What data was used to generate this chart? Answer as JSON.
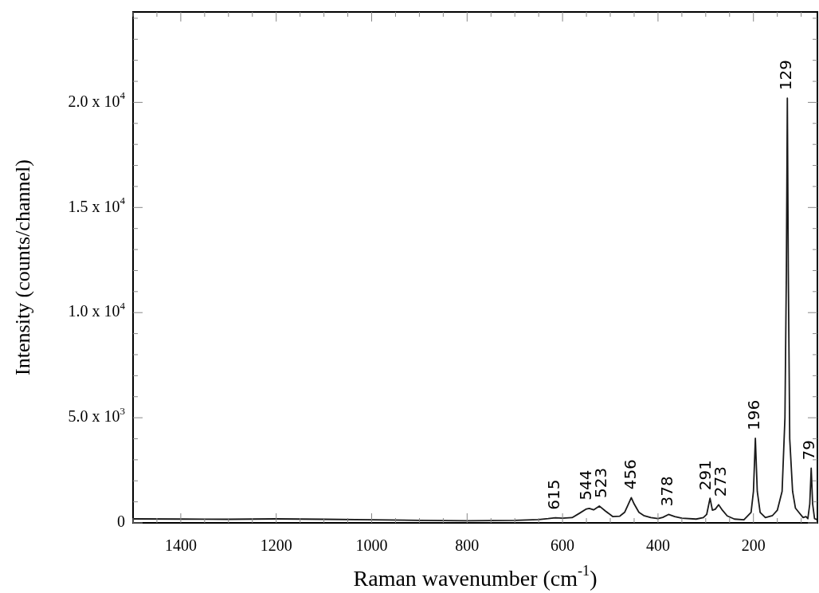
{
  "chart_data": {
    "type": "line",
    "xlabel": "Raman wavenumber (cm$^{-1}$)",
    "ylabel": "Intensity (counts/channel)",
    "xlim": [
      1500,
      66
    ],
    "ylim": [
      0,
      24300
    ],
    "xticks": [
      {
        "value": 1500,
        "label": null
      },
      {
        "value": 1450,
        "label": null
      },
      1400,
      {
        "value": 1350,
        "label": null
      },
      {
        "value": 1300,
        "label": null
      },
      {
        "value": 1250,
        "label": null
      },
      1200,
      {
        "value": 1150,
        "label": null
      },
      {
        "value": 1100,
        "label": null
      },
      {
        "value": 1050,
        "label": null
      },
      1000,
      {
        "value": 950,
        "label": null
      },
      {
        "value": 900,
        "label": null
      },
      {
        "value": 850,
        "label": null
      },
      800,
      {
        "value": 750,
        "label": null
      },
      {
        "value": 700,
        "label": null
      },
      {
        "value": 650,
        "label": null
      },
      600,
      {
        "value": 550,
        "label": null
      },
      {
        "value": 500,
        "label": null
      },
      {
        "value": 450,
        "label": null
      },
      400,
      {
        "value": 350,
        "label": null
      },
      {
        "value": 300,
        "label": null
      },
      {
        "value": 250,
        "label": null
      },
      200,
      {
        "value": 150,
        "label": null
      },
      {
        "value": 100,
        "label": null
      }
    ],
    "yticks": [
      0,
      {
        "value": 1000,
        "label": null
      },
      {
        "value": 2000,
        "label": null
      },
      {
        "value": 3000,
        "label": null
      },
      {
        "value": 4000,
        "label": null
      },
      {
        "value": 5000,
        "label": "5.0 x 10$^{3}$"
      },
      {
        "value": 6000,
        "label": null
      },
      {
        "value": 7000,
        "label": null
      },
      {
        "value": 8000,
        "label": null
      },
      {
        "value": 9000,
        "label": null
      },
      {
        "value": 10000,
        "label": "1.0 x 10$^{4}$"
      },
      {
        "value": 11000,
        "label": null
      },
      {
        "value": 12000,
        "label": null
      },
      {
        "value": 13000,
        "label": null
      },
      {
        "value": 14000,
        "label": null
      },
      {
        "value": 15000,
        "label": "1.5 x 10$^{4}$"
      },
      {
        "value": 16000,
        "label": null
      },
      {
        "value": 17000,
        "label": null
      },
      {
        "value": 18000,
        "label": null
      },
      {
        "value": 19000,
        "label": null
      },
      {
        "value": 20000,
        "label": "2.0 x 10$^{4}$"
      },
      {
        "value": 21000,
        "label": null
      },
      {
        "value": 22000,
        "label": null
      },
      {
        "value": 23000,
        "label": null
      },
      {
        "value": 24000,
        "label": null
      }
    ],
    "grid": false,
    "legend": false,
    "marker": "none",
    "line_style": "solid",
    "x": [
      1500,
      1400,
      1300,
      1200,
      1100,
      1000,
      900,
      800,
      700,
      650,
      630,
      615,
      600,
      580,
      565,
      550,
      544,
      535,
      523,
      510,
      495,
      480,
      470,
      462,
      456,
      450,
      440,
      430,
      415,
      400,
      390,
      378,
      365,
      350,
      320,
      305,
      298,
      291,
      286,
      280,
      273,
      265,
      255,
      240,
      220,
      205,
      200,
      196,
      192,
      186,
      175,
      160,
      150,
      140,
      134,
      131,
      129,
      127,
      124,
      118,
      112,
      105,
      96,
      90,
      86,
      82,
      79,
      76,
      72,
      66
    ],
    "series": [
      {
        "color": "#1a1a1a",
        "values": [
          190,
          180,
          170,
          190,
          170,
          150,
          120,
          100,
          120,
          160,
          200,
          240,
          220,
          250,
          450,
          660,
          690,
          620,
          800,
          560,
          300,
          320,
          500,
          900,
          1200,
          900,
          500,
          350,
          250,
          200,
          260,
          400,
          300,
          220,
          180,
          250,
          400,
          1170,
          600,
          650,
          860,
          600,
          330,
          180,
          150,
          500,
          1500,
          4020,
          1500,
          500,
          250,
          350,
          600,
          1500,
          5000,
          12000,
          20200,
          12000,
          4000,
          1500,
          700,
          500,
          250,
          300,
          200,
          900,
          2600,
          900,
          200,
          150
        ]
      }
    ],
    "annotations": [
      {
        "text": "615",
        "x": 615,
        "y": 240
      },
      {
        "text": "544",
        "x": 544,
        "y": 690
      },
      {
        "text": "523",
        "x": 523,
        "y": 800
      },
      {
        "text": "456",
        "x": 456,
        "y": 1200
      },
      {
        "text": "378",
        "x": 378,
        "y": 400
      },
      {
        "text": "291",
        "x": 291,
        "y": 1170
      },
      {
        "text": "273",
        "x": 273,
        "y": 860
      },
      {
        "text": "196",
        "x": 196,
        "y": 4020
      },
      {
        "text": "129",
        "x": 129,
        "y": 20200
      },
      {
        "text": "79",
        "x": 79,
        "y": 2600
      }
    ]
  }
}
